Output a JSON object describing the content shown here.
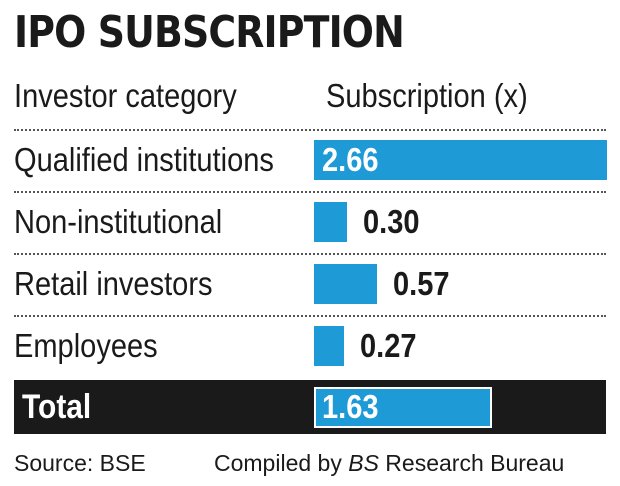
{
  "chart_data": {
    "type": "bar",
    "orientation": "horizontal",
    "title": "IPO SUBSCRIPTION",
    "column_headers": {
      "category": "Investor category",
      "value": "Subscription (x)"
    },
    "categories": [
      "Qualified institutions",
      "Non-institutional",
      "Retail investors",
      "Employees"
    ],
    "values": [
      2.66,
      0.3,
      0.57,
      0.27
    ],
    "value_labels": [
      "2.66",
      "0.30",
      "0.57",
      "0.27"
    ],
    "total": {
      "label": "Total",
      "value": 1.63,
      "value_label": "1.63"
    },
    "bar_color": "#1e9ad6",
    "total_band_color": "#1a1a1a",
    "grid": false,
    "legend": "none"
  },
  "footer": {
    "source": "Source: BSE",
    "credit_prefix": "Compiled by ",
    "credit_italic": "BS",
    "credit_suffix": " Research Bureau"
  }
}
